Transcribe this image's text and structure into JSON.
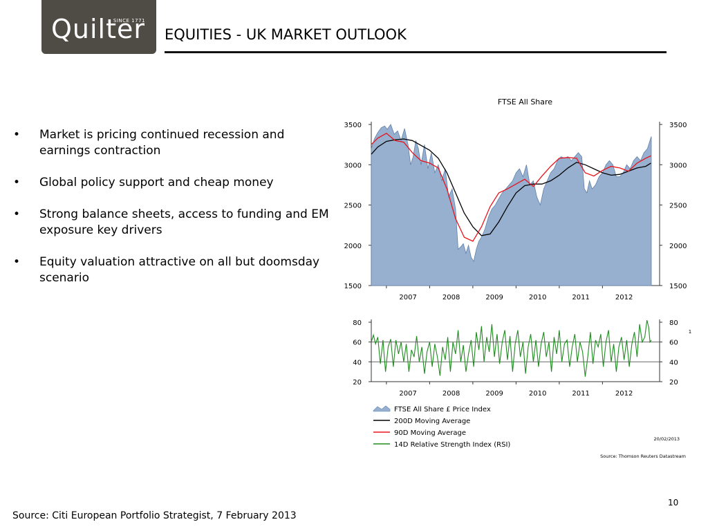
{
  "logo": {
    "word": "Quilter",
    "since": "SINCE 1771"
  },
  "header": {
    "title": "EQUITIES - UK MARKET OUTLOOK"
  },
  "bullets": [
    {
      "text": "Market is pricing continued recession and earnings contraction"
    },
    {
      "text": "Global policy support and cheap money"
    },
    {
      "text": "Strong balance sheets, access to funding and EM exposure key drivers"
    },
    {
      "text": "Equity valuation attractive on all but doomsday scenario"
    }
  ],
  "bullet_glyph": "•",
  "colors": {
    "area_fill": "#97b0cf",
    "area_stroke": "#5f80ac",
    "ma200": "#000000",
    "ma90": "#e8131b",
    "rsi": "#1f8a1f",
    "logo_bg": "#4f4b45"
  },
  "footer": {
    "page_number": "10",
    "source": "Source: Citi European Portfolio Strategist, 7 February 2013"
  },
  "chart_data": [
    {
      "type": "area",
      "title": "FTSE All Share",
      "x_tick_labels": [
        "2007",
        "2008",
        "2009",
        "2010",
        "2011",
        "2012"
      ],
      "x_tick_dates": [
        2007.0,
        2008.0,
        2009.0,
        2010.0,
        2011.0,
        2012.0
      ],
      "x_range": [
        2006.65,
        2013.13
      ],
      "ylim": [
        1500,
        3500
      ],
      "y_ticks": [
        1500,
        2000,
        2500,
        3000,
        3500
      ],
      "y_tick_labels": [
        "1500",
        "2000",
        "2500",
        "3000",
        "3500"
      ],
      "series": [
        {
          "name": "FTSE All Share £ Price Index",
          "kind": "area",
          "x": [
            2006.65,
            2006.72,
            2006.8,
            2006.88,
            2006.96,
            2007.02,
            2007.1,
            2007.18,
            2007.26,
            2007.34,
            2007.42,
            2007.5,
            2007.56,
            2007.62,
            2007.68,
            2007.74,
            2007.8,
            2007.88,
            2007.96,
            2008.04,
            2008.12,
            2008.2,
            2008.28,
            2008.36,
            2008.44,
            2008.52,
            2008.6,
            2008.66,
            2008.72,
            2008.78,
            2008.84,
            2008.9,
            2008.96,
            2009.02,
            2009.08,
            2009.14,
            2009.2,
            2009.28,
            2009.36,
            2009.44,
            2009.52,
            2009.6,
            2009.68,
            2009.76,
            2009.84,
            2009.92,
            2010.0,
            2010.08,
            2010.16,
            2010.24,
            2010.32,
            2010.4,
            2010.48,
            2010.56,
            2010.64,
            2010.72,
            2010.8,
            2010.88,
            2010.96,
            2011.04,
            2011.12,
            2011.2,
            2011.28,
            2011.36,
            2011.44,
            2011.52,
            2011.58,
            2011.64,
            2011.7,
            2011.76,
            2011.84,
            2011.92,
            2012.0,
            2012.08,
            2012.16,
            2012.24,
            2012.32,
            2012.4,
            2012.48,
            2012.56,
            2012.64,
            2012.72,
            2012.8,
            2012.88,
            2012.96,
            2013.04,
            2013.1,
            2013.13
          ],
          "y": [
            3200,
            3320,
            3400,
            3460,
            3480,
            3440,
            3500,
            3380,
            3420,
            3300,
            3450,
            3250,
            3000,
            3100,
            3300,
            3200,
            3000,
            3250,
            2950,
            3150,
            2900,
            3000,
            2800,
            2950,
            2600,
            2700,
            2450,
            1950,
            1980,
            2020,
            1900,
            2000,
            1850,
            1800,
            1950,
            2050,
            2100,
            2200,
            2350,
            2450,
            2500,
            2580,
            2650,
            2700,
            2750,
            2800,
            2900,
            2950,
            2850,
            3000,
            2750,
            2800,
            2600,
            2500,
            2700,
            2800,
            2900,
            2950,
            3050,
            3100,
            3080,
            3100,
            3050,
            3100,
            3150,
            3100,
            2700,
            2650,
            2800,
            2700,
            2750,
            2850,
            2900,
            3000,
            3050,
            3000,
            2850,
            2850,
            2900,
            3000,
            2950,
            3050,
            3100,
            3050,
            3150,
            3200,
            3300,
            3350
          ]
        },
        {
          "name": "200D Moving Average",
          "kind": "line",
          "x": [
            2006.65,
            2006.8,
            2007.0,
            2007.2,
            2007.4,
            2007.6,
            2007.8,
            2008.0,
            2008.2,
            2008.4,
            2008.6,
            2008.8,
            2009.0,
            2009.2,
            2009.4,
            2009.6,
            2009.8,
            2010.0,
            2010.2,
            2010.4,
            2010.6,
            2010.8,
            2011.0,
            2011.2,
            2011.4,
            2011.6,
            2011.8,
            2012.0,
            2012.2,
            2012.4,
            2012.6,
            2012.8,
            2013.0,
            2013.12
          ],
          "y": [
            3130,
            3220,
            3290,
            3310,
            3320,
            3300,
            3240,
            3180,
            3080,
            2900,
            2650,
            2400,
            2230,
            2120,
            2140,
            2290,
            2480,
            2650,
            2740,
            2760,
            2760,
            2800,
            2870,
            2960,
            3030,
            3000,
            2950,
            2900,
            2870,
            2880,
            2920,
            2960,
            2980,
            3020
          ]
        },
        {
          "name": "90D Moving Average",
          "kind": "line",
          "x": [
            2006.65,
            2006.8,
            2007.0,
            2007.2,
            2007.4,
            2007.6,
            2007.8,
            2008.0,
            2008.2,
            2008.4,
            2008.6,
            2008.8,
            2009.0,
            2009.2,
            2009.4,
            2009.6,
            2009.8,
            2010.0,
            2010.2,
            2010.4,
            2010.6,
            2010.8,
            2011.0,
            2011.2,
            2011.4,
            2011.6,
            2011.8,
            2012.0,
            2012.2,
            2012.4,
            2012.6,
            2012.8,
            2013.0,
            2013.12
          ],
          "y": [
            3250,
            3330,
            3390,
            3300,
            3280,
            3150,
            3050,
            3020,
            2960,
            2700,
            2330,
            2100,
            2050,
            2230,
            2480,
            2650,
            2700,
            2760,
            2820,
            2730,
            2860,
            2980,
            3080,
            3090,
            3080,
            2900,
            2860,
            2930,
            2980,
            2960,
            2920,
            3020,
            3080,
            3110
          ]
        }
      ],
      "legend": "bottom"
    },
    {
      "type": "line",
      "x_tick_labels": [
        "2007",
        "2008",
        "2009",
        "2010",
        "2011",
        "2012"
      ],
      "x_tick_dates": [
        2007.0,
        2008.0,
        2009.0,
        2010.0,
        2011.0,
        2012.0
      ],
      "x_range": [
        2006.65,
        2013.13
      ],
      "ylim": [
        20,
        80
      ],
      "y_ticks": [
        20,
        40,
        60,
        80
      ],
      "y_tick_labels": [
        "20",
        "40",
        "60",
        "80"
      ],
      "reference_lines": [
        40,
        60
      ],
      "series": [
        {
          "name": "14D Relative Strength Index (RSI)",
          "x": [
            2006.65,
            2006.7,
            2006.75,
            2006.8,
            2006.86,
            2006.92,
            2006.98,
            2007.04,
            2007.1,
            2007.16,
            2007.22,
            2007.28,
            2007.34,
            2007.4,
            2007.46,
            2007.52,
            2007.58,
            2007.64,
            2007.7,
            2007.76,
            2007.82,
            2007.88,
            2007.94,
            2008.0,
            2008.06,
            2008.12,
            2008.18,
            2008.24,
            2008.3,
            2008.36,
            2008.42,
            2008.48,
            2008.54,
            2008.6,
            2008.66,
            2008.72,
            2008.78,
            2008.84,
            2008.9,
            2008.96,
            2009.02,
            2009.08,
            2009.14,
            2009.2,
            2009.26,
            2009.32,
            2009.38,
            2009.44,
            2009.5,
            2009.56,
            2009.62,
            2009.68,
            2009.74,
            2009.8,
            2009.86,
            2009.92,
            2009.98,
            2010.04,
            2010.1,
            2010.16,
            2010.22,
            2010.28,
            2010.34,
            2010.4,
            2010.46,
            2010.52,
            2010.58,
            2010.64,
            2010.7,
            2010.76,
            2010.82,
            2010.88,
            2010.94,
            2011.0,
            2011.06,
            2011.12,
            2011.18,
            2011.24,
            2011.3,
            2011.36,
            2011.42,
            2011.48,
            2011.54,
            2011.6,
            2011.66,
            2011.72,
            2011.78,
            2011.84,
            2011.9,
            2011.96,
            2012.02,
            2012.08,
            2012.14,
            2012.2,
            2012.26,
            2012.32,
            2012.38,
            2012.44,
            2012.5,
            2012.56,
            2012.62,
            2012.68,
            2012.74,
            2012.8,
            2012.86,
            2012.92,
            2012.98,
            2013.03,
            2013.07,
            2013.1,
            2013.13
          ],
          "y": [
            60,
            67,
            58,
            65,
            38,
            62,
            30,
            55,
            63,
            35,
            62,
            48,
            60,
            40,
            58,
            30,
            52,
            45,
            66,
            40,
            55,
            28,
            50,
            60,
            35,
            58,
            45,
            26,
            55,
            42,
            65,
            30,
            60,
            48,
            72,
            40,
            57,
            30,
            48,
            62,
            35,
            70,
            52,
            76,
            40,
            65,
            50,
            78,
            45,
            68,
            38,
            60,
            72,
            42,
            66,
            30,
            58,
            72,
            45,
            60,
            28,
            55,
            68,
            40,
            62,
            35,
            58,
            70,
            45,
            60,
            30,
            65,
            48,
            72,
            40,
            58,
            62,
            35,
            55,
            68,
            40,
            60,
            50,
            25,
            45,
            70,
            38,
            62,
            55,
            68,
            35,
            60,
            72,
            40,
            58,
            30,
            55,
            65,
            42,
            62,
            35,
            58,
            70,
            45,
            78,
            60,
            65,
            82,
            75,
            60,
            62
          ]
        }
      ]
    }
  ],
  "chart_notes": {
    "legend_items": [
      {
        "label": "FTSE All Share £ Price Index"
      },
      {
        "label": "200D Moving Average"
      },
      {
        "label": "90D Moving Average"
      },
      {
        "label": "14D Relative Strength Index (RSI)"
      }
    ],
    "date_label": "20/02/2013",
    "source_label": "Source: Thomson Reuters Datastream",
    "edge_mark": "1"
  }
}
